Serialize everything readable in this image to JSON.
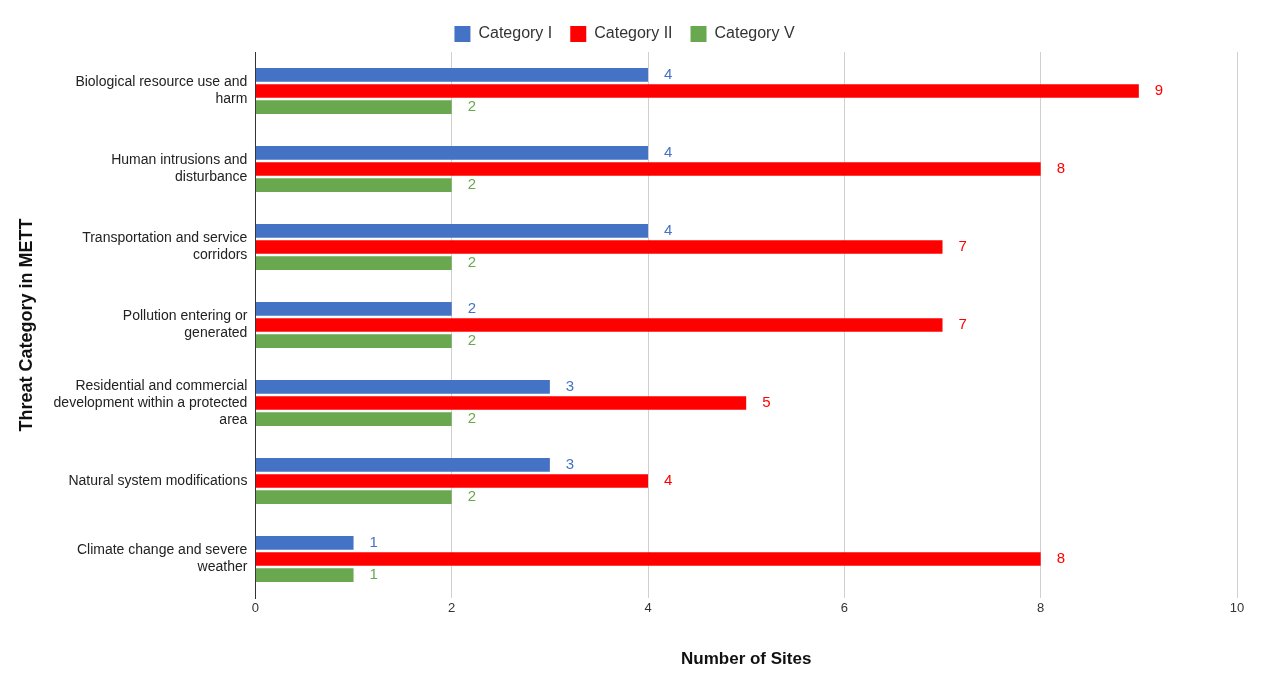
{
  "chart_data": {
    "type": "bar",
    "orientation": "horizontal",
    "xlabel": "Number of Sites",
    "ylabel": "Threat Category in METT",
    "categories": [
      "Biological resource use and harm",
      "Human intrusions and disturbance",
      "Transportation and service corridors",
      "Pollution entering or generated",
      "Residential and commercial development within a protected area",
      "Natural system modifications",
      "Climate change and severe weather"
    ],
    "series": [
      {
        "name": "Category I",
        "color": "#4472c4",
        "values": [
          4,
          4,
          4,
          2,
          3,
          3,
          1
        ]
      },
      {
        "name": "Category II",
        "color": "#ff0000",
        "values": [
          9,
          8,
          7,
          7,
          5,
          4,
          8
        ]
      },
      {
        "name": "Category V",
        "color": "#6aa84f",
        "values": [
          2,
          2,
          2,
          2,
          2,
          2,
          1
        ]
      }
    ],
    "xlim": [
      0,
      10
    ],
    "xticks": [
      0,
      2,
      4,
      6,
      8,
      10
    ],
    "grid": "x",
    "legend": "top",
    "data_labels": true
  }
}
